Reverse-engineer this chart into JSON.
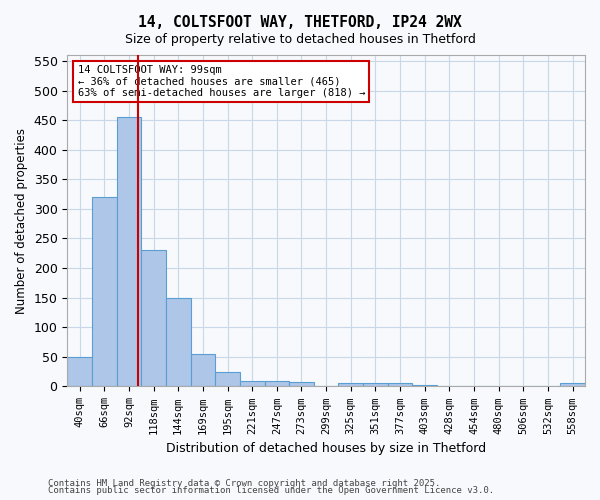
{
  "title1": "14, COLTSFOOT WAY, THETFORD, IP24 2WX",
  "title2": "Size of property relative to detached houses in Thetford",
  "xlabel": "Distribution of detached houses by size in Thetford",
  "ylabel": "Number of detached properties",
  "bin_labels": [
    "40sqm",
    "66sqm",
    "92sqm",
    "118sqm",
    "144sqm",
    "169sqm",
    "195sqm",
    "221sqm",
    "247sqm",
    "273sqm",
    "299sqm",
    "325sqm",
    "351sqm",
    "377sqm",
    "403sqm",
    "428sqm",
    "454sqm",
    "480sqm",
    "506sqm",
    "532sqm",
    "558sqm"
  ],
  "bin_values": [
    50,
    320,
    455,
    230,
    150,
    55,
    25,
    10,
    10,
    8,
    0,
    5,
    5,
    5,
    3,
    0,
    0,
    0,
    0,
    0,
    5
  ],
  "bar_color": "#aec6e8",
  "bar_edge_color": "#5a9fd4",
  "vline_x": 2.385,
  "vline_color": "#cc0000",
  "annotation_text": "14 COLTSFOOT WAY: 99sqm\n← 36% of detached houses are smaller (465)\n63% of semi-detached houses are larger (818) →",
  "annotation_box_color": "#ffffff",
  "annotation_box_edge": "#cc0000",
  "ylim": [
    0,
    560
  ],
  "yticks": [
    0,
    50,
    100,
    150,
    200,
    250,
    300,
    350,
    400,
    450,
    500,
    550
  ],
  "footer1": "Contains HM Land Registry data © Crown copyright and database right 2025.",
  "footer2": "Contains public sector information licensed under the Open Government Licence v3.0.",
  "bg_color": "#f7f9fc",
  "grid_color": "#c8d8e8"
}
